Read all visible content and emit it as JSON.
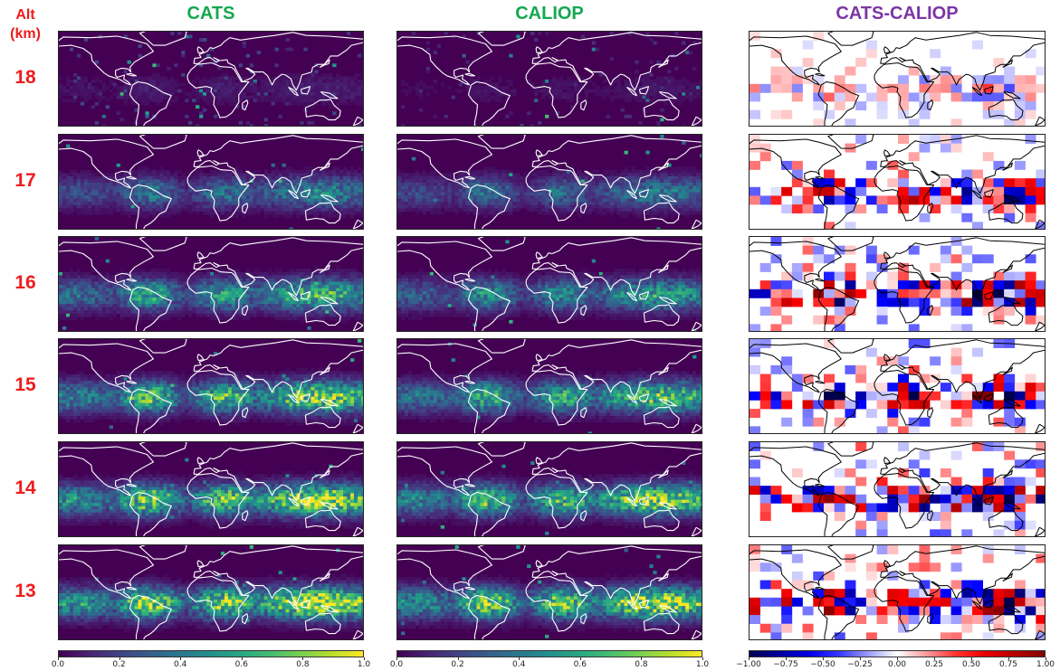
{
  "figure": {
    "alt_header_line1": "Alt",
    "alt_header_line2": "(km)",
    "columns": [
      {
        "title": "CATS",
        "color": "#14a850"
      },
      {
        "title": "CALIOP",
        "color": "#14a850"
      },
      {
        "title": "CATS-CALIOP",
        "color": "#7b35a6"
      }
    ]
  },
  "chart_data": [
    {
      "type": "heatmap",
      "title": "CATS",
      "map": "world-coastlines",
      "colormap": "viridis",
      "colorbar_range": [
        0.0,
        1.0
      ],
      "colorbar_ticks": [
        "0.0",
        "0.2",
        "0.4",
        "0.6",
        "0.8",
        "1.0"
      ],
      "rows": [
        {
          "altitude_km": "18",
          "peak_value": 0.15
        },
        {
          "altitude_km": "17",
          "peak_value": 0.45
        },
        {
          "altitude_km": "16",
          "peak_value": 0.65
        },
        {
          "altitude_km": "15",
          "peak_value": 0.8
        },
        {
          "altitude_km": "14",
          "peak_value": 0.9
        },
        {
          "altitude_km": "13",
          "peak_value": 0.95
        }
      ]
    },
    {
      "type": "heatmap",
      "title": "CALIOP",
      "map": "world-coastlines",
      "colormap": "viridis",
      "colorbar_range": [
        0.0,
        1.0
      ],
      "colorbar_ticks": [
        "0.0",
        "0.2",
        "0.4",
        "0.6",
        "0.8",
        "1.0"
      ],
      "rows": [
        {
          "altitude_km": "18",
          "peak_value": 0.1
        },
        {
          "altitude_km": "17",
          "peak_value": 0.4
        },
        {
          "altitude_km": "16",
          "peak_value": 0.55
        },
        {
          "altitude_km": "15",
          "peak_value": 0.7
        },
        {
          "altitude_km": "14",
          "peak_value": 0.8
        },
        {
          "altitude_km": "13",
          "peak_value": 0.9
        }
      ]
    },
    {
      "type": "heatmap",
      "title": "CATS-CALIOP",
      "map": "world-coastlines",
      "colormap": "seismic",
      "colorbar_range": [
        -1.0,
        1.0
      ],
      "colorbar_ticks": [
        "−1.00",
        "−0.75",
        "−0.50",
        "−0.25",
        "0.00",
        "0.25",
        "0.50",
        "0.75",
        "1.00"
      ],
      "rows": [
        {
          "altitude_km": "18",
          "peak_value": 0.3
        },
        {
          "altitude_km": "17",
          "peak_value": 0.8
        },
        {
          "altitude_km": "16",
          "peak_value": 0.9
        },
        {
          "altitude_km": "15",
          "peak_value": 0.9
        },
        {
          "altitude_km": "14",
          "peak_value": 0.9
        },
        {
          "altitude_km": "13",
          "peak_value": 0.9
        }
      ]
    }
  ]
}
